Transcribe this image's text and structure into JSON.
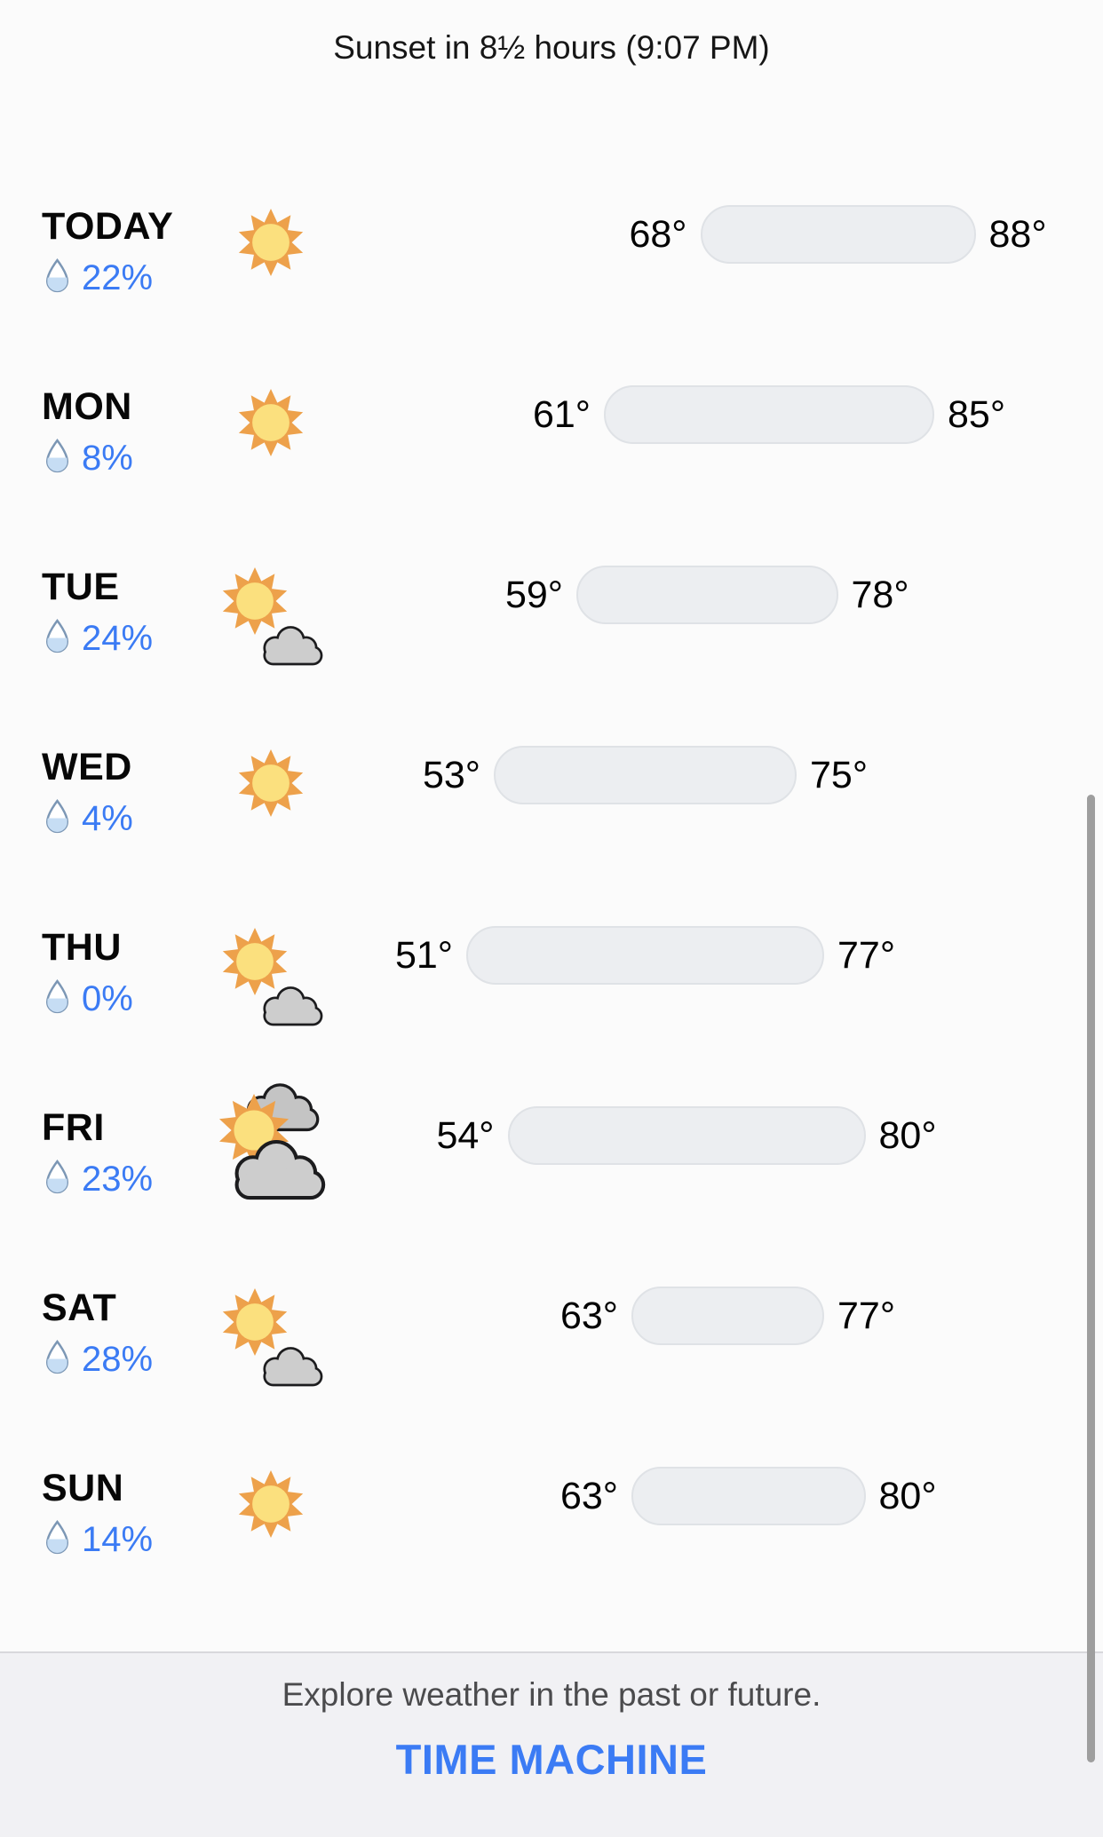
{
  "header": {
    "sunset_text": "Sunset in 8½ hours (9:07 PM)"
  },
  "forecast": {
    "temp_domain": {
      "min": 51,
      "max": 88
    },
    "days": [
      {
        "label": "TODAY",
        "precip": "22%",
        "icon": "sun",
        "low": 68,
        "high": 88,
        "low_label": "68°",
        "high_label": "88°"
      },
      {
        "label": "MON",
        "precip": "8%",
        "icon": "sun",
        "low": 61,
        "high": 85,
        "low_label": "61°",
        "high_label": "85°"
      },
      {
        "label": "TUE",
        "precip": "24%",
        "icon": "sun-small-cloud",
        "low": 59,
        "high": 78,
        "low_label": "59°",
        "high_label": "78°"
      },
      {
        "label": "WED",
        "precip": "4%",
        "icon": "sun",
        "low": 53,
        "high": 75,
        "low_label": "53°",
        "high_label": "75°"
      },
      {
        "label": "THU",
        "precip": "0%",
        "icon": "sun-small-cloud",
        "low": 51,
        "high": 77,
        "low_label": "51°",
        "high_label": "77°"
      },
      {
        "label": "FRI",
        "precip": "23%",
        "icon": "sun-behind-clouds",
        "low": 54,
        "high": 80,
        "low_label": "54°",
        "high_label": "80°"
      },
      {
        "label": "SAT",
        "precip": "28%",
        "icon": "sun-small-cloud",
        "low": 63,
        "high": 77,
        "low_label": "63°",
        "high_label": "77°"
      },
      {
        "label": "SUN",
        "precip": "14%",
        "icon": "sun",
        "low": 63,
        "high": 80,
        "low_label": "63°",
        "high_label": "80°"
      }
    ]
  },
  "footer": {
    "caption": "Explore weather in the past or future.",
    "button_label": "TIME MACHINE"
  },
  "colors": {
    "page_bg": "#FBFBFB",
    "footer_bg": "#F1F1F4",
    "text_primary": "#0A0A0A",
    "text_secondary": "#4B4B4D",
    "accent_blue": "#3B7BF4",
    "temp_bar_fill": "#ECEEF1",
    "temp_bar_border": "#DFE2E6",
    "sun_ray": "#EDA14B",
    "sun_core": "#FBE07E",
    "cloud_gray": "#CDCDCD",
    "cloud_gray_back": "#C4C4C4",
    "cloud_outline": "#1C1C1E",
    "droplet_fill": "#C6DDF4",
    "droplet_stroke": "#7C97B5",
    "scrollbar": "#9E9E9E"
  },
  "icon_names": {
    "sun": "sun-icon",
    "sun-small-cloud": "sun-behind-small-cloud-icon",
    "sun-behind-clouds": "sun-behind-clouds-icon",
    "droplet": "water-droplet-icon"
  }
}
